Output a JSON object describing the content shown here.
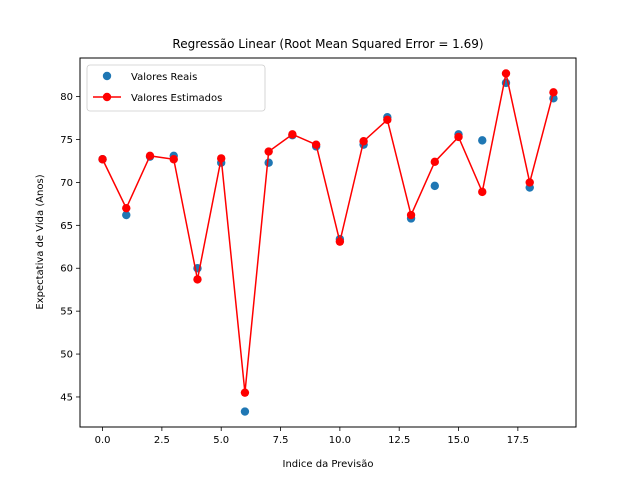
{
  "chart_data": {
    "type": "scatter",
    "title": "Regressão Linear (Root Mean Squared Error = 1.69)",
    "xlabel": "Indice da Previsão",
    "ylabel": "Expectativa de Vida (Anos)",
    "xlim": [
      -0.95,
      19.95
    ],
    "ylim": [
      41.5,
      84.5
    ],
    "xticks": [
      0,
      2.5,
      5,
      7.5,
      10,
      12.5,
      15,
      17.5
    ],
    "xtick_labels": [
      "0.0",
      "2.5",
      "5.0",
      "7.5",
      "10.0",
      "12.5",
      "15.0",
      "17.5"
    ],
    "yticks": [
      45,
      50,
      55,
      60,
      65,
      70,
      75,
      80
    ],
    "ytick_labels": [
      "45",
      "50",
      "55",
      "60",
      "65",
      "70",
      "75",
      "80"
    ],
    "grid": false,
    "legend_position": "top-left",
    "x": [
      0,
      1,
      2,
      3,
      4,
      5,
      6,
      7,
      8,
      9,
      10,
      11,
      12,
      13,
      14,
      15,
      16,
      17,
      18,
      19
    ],
    "series": [
      {
        "name": "Valores Reais",
        "kind": "scatter",
        "color": "#1f77b4",
        "values": [
          72.7,
          66.2,
          73.0,
          73.1,
          60.0,
          72.3,
          43.3,
          72.3,
          75.5,
          74.2,
          63.4,
          74.4,
          77.6,
          65.8,
          69.6,
          75.6,
          74.9,
          81.6,
          69.4,
          79.8
        ]
      },
      {
        "name": "Valores Estimados",
        "kind": "line-marker",
        "color": "#ff0000",
        "values": [
          72.7,
          67.0,
          73.1,
          72.7,
          58.7,
          72.8,
          45.5,
          73.6,
          75.6,
          74.4,
          63.1,
          74.8,
          77.3,
          66.2,
          72.4,
          75.3,
          68.9,
          82.7,
          70.0,
          80.5
        ]
      }
    ]
  }
}
